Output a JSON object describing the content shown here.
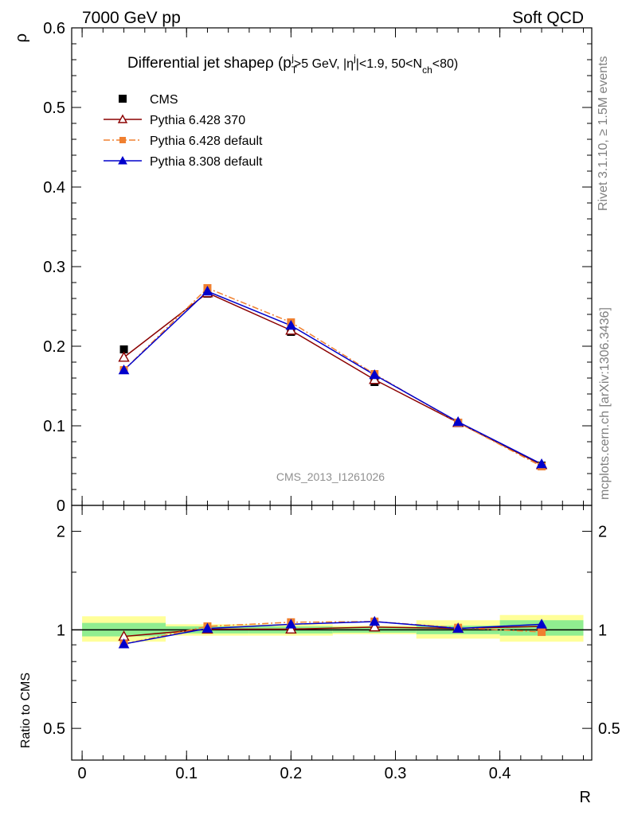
{
  "header": {
    "left": "7000 GeV pp",
    "right": "Soft QCD"
  },
  "side_labels": {
    "rivet": "Rivet 3.1.10, ≥ 1.5M events",
    "mcplots": "mcplots.cern.ch [arXiv:1306.3436]"
  },
  "analysis_id": "CMS_2013_I1261026",
  "chart_data": [
    {
      "type": "line",
      "title": "Differential jet shapeρ (p_T^j>5 GeV, |η^j|<1.9, 50<N_ch<80)",
      "title_parts": {
        "main": "Differential jet shapeρ (p",
        "sub1": "T",
        "sup1": "j",
        "mid1": ">5 GeV, |η",
        "sup2": "j",
        "mid2": "|<1.9, 50<N",
        "sub2": "ch",
        "end": "<80)"
      },
      "xlabel": "",
      "ylabel": "ρ",
      "xlim": [
        -0.01,
        0.488
      ],
      "ylim": [
        0,
        0.6
      ],
      "yticks": [
        "0",
        "0.1",
        "0.2",
        "0.3",
        "0.4",
        "0.5",
        "0.6"
      ],
      "legend_position": "top-left",
      "series": [
        {
          "name": "CMS",
          "color": "#000000",
          "marker": "square",
          "x": [
            0.04,
            0.12,
            0.2,
            0.28,
            0.36,
            0.44
          ],
          "y": [
            0.196,
            0.266,
            0.218,
            0.155,
            0.104,
            0.05
          ]
        },
        {
          "name": "Pythia 6.428 370",
          "color": "#8b0000",
          "marker": "open-triangle",
          "line": "solid",
          "x": [
            0.04,
            0.12,
            0.2,
            0.28,
            0.36,
            0.44
          ],
          "y": [
            0.186,
            0.267,
            0.22,
            0.158,
            0.104,
            0.051
          ]
        },
        {
          "name": "Pythia 6.428 default",
          "color": "#f08030",
          "marker": "square",
          "line": "dashdot",
          "x": [
            0.04,
            0.12,
            0.2,
            0.28,
            0.36,
            0.44
          ],
          "y": [
            0.17,
            0.273,
            0.23,
            0.165,
            0.104,
            0.049
          ]
        },
        {
          "name": "Pythia 8.308 default",
          "color": "#0000cc",
          "marker": "triangle",
          "line": "solid",
          "x": [
            0.04,
            0.12,
            0.2,
            0.28,
            0.36,
            0.44
          ],
          "y": [
            0.17,
            0.269,
            0.226,
            0.164,
            0.105,
            0.052
          ]
        }
      ]
    },
    {
      "type": "line",
      "xlabel": "R",
      "ylabel": "Ratio to CMS",
      "xlim": [
        -0.01,
        0.488
      ],
      "ylim": [
        0.4,
        2.4
      ],
      "y_scale": "log",
      "xticks": [
        "0",
        "0.1",
        "0.2",
        "0.3",
        "0.4"
      ],
      "yticks": [
        "0.5",
        "1",
        "2"
      ],
      "bands": {
        "edges": [
          0.0,
          0.08,
          0.16,
          0.24,
          0.32,
          0.4,
          0.48
        ],
        "inner": [
          [
            0.955,
            1.05
          ],
          [
            0.975,
            1.025
          ],
          [
            0.975,
            1.025
          ],
          [
            0.98,
            1.02
          ],
          [
            0.97,
            1.03
          ],
          [
            0.96,
            1.07
          ]
        ],
        "outer": [
          [
            0.92,
            1.1
          ],
          [
            0.96,
            1.04
          ],
          [
            0.96,
            1.04
          ],
          [
            0.97,
            1.03
          ],
          [
            0.94,
            1.07
          ],
          [
            0.92,
            1.11
          ]
        ],
        "inner_color": "#90ee90",
        "outer_color": "#ffff99"
      },
      "series": [
        {
          "name": "Pythia 6.428 370",
          "color": "#8b0000",
          "marker": "open-triangle",
          "line": "solid",
          "x": [
            0.04,
            0.12,
            0.2,
            0.28,
            0.36,
            0.44
          ],
          "y": [
            0.955,
            1.005,
            1.005,
            1.02,
            1.01,
            1.025
          ]
        },
        {
          "name": "Pythia 6.428 default",
          "color": "#f08030",
          "marker": "square",
          "line": "dashdot",
          "x": [
            0.04,
            0.12,
            0.2,
            0.28,
            0.36,
            0.44
          ],
          "y": [
            0.905,
            1.025,
            1.055,
            1.06,
            1.015,
            0.985
          ]
        },
        {
          "name": "Pythia 8.308 default",
          "color": "#0000cc",
          "marker": "triangle",
          "line": "solid",
          "x": [
            0.04,
            0.12,
            0.2,
            0.28,
            0.36,
            0.44
          ],
          "y": [
            0.905,
            1.01,
            1.04,
            1.06,
            1.01,
            1.04
          ]
        }
      ]
    }
  ]
}
